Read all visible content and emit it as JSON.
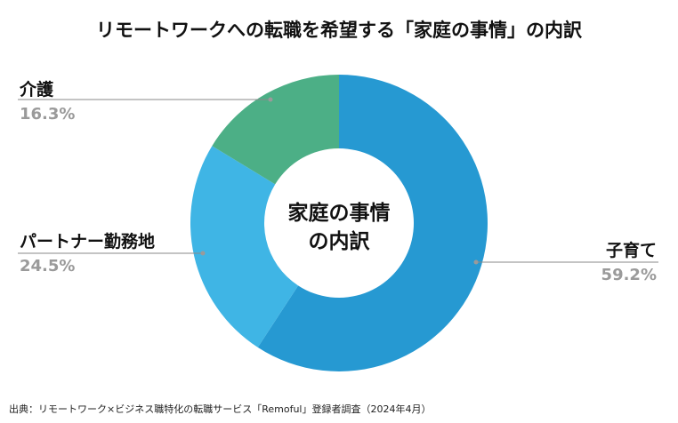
{
  "title": "リモートワークへの転職を希望する「家庭の事情」の内訳",
  "source": "出典：リモートワーク×ビジネス職特化の転職サービス「Remoful」登録者調査（2024年4月）",
  "chart_data": {
    "type": "pie",
    "variant": "donut",
    "center_label": [
      "家庭の事情",
      "の内訳"
    ],
    "slices": [
      {
        "label": "子育て",
        "value": 59.2,
        "value_text": "59.2%",
        "color": "#2699d2"
      },
      {
        "label": "パートナー勤務地",
        "value": 24.5,
        "value_text": "24.5%",
        "color": "#3fb5e5"
      },
      {
        "label": "介護",
        "value": 16.3,
        "value_text": "16.3%",
        "color": "#4caf86"
      }
    ]
  }
}
